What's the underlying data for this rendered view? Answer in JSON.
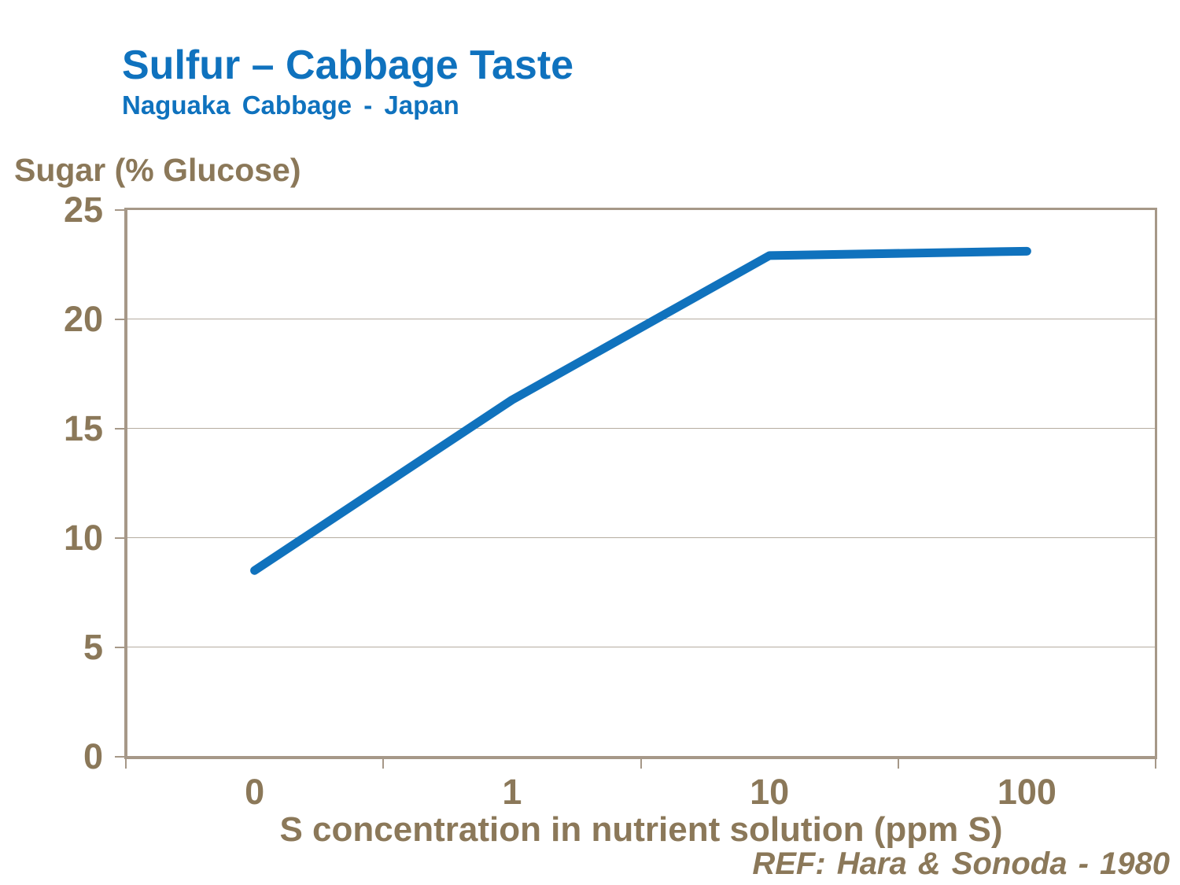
{
  "header": {
    "title": "Sulfur – Cabbage Taste",
    "subtitle": "Naguaka Cabbage - Japan"
  },
  "footer": {
    "reference": "REF: Hara & Sonoda - 1980"
  },
  "chart_data": {
    "type": "line",
    "title": "Sulfur – Cabbage Taste",
    "subtitle": "Naguaka Cabbage - Japan",
    "categories": [
      "0",
      "1",
      "10",
      "100"
    ],
    "values": [
      8.5,
      16.3,
      22.9,
      23.1
    ],
    "series_name": "Sugar (% Glucose)",
    "xlabel": "S concentration in nutrient solution (ppm S)",
    "ylabel": "Sugar (% Glucose)",
    "ylim": [
      0,
      25
    ],
    "y_ticks": [
      0,
      5,
      10,
      15,
      20,
      25
    ],
    "grid": "horizontal",
    "legend": "none",
    "annotation": "REF: Hara & Sonoda - 1980"
  },
  "colors": {
    "accent_blue": "#0F72BE",
    "line_blue": "#1072BD",
    "label_brown": "#8B7859",
    "frame_tan": "#A69888",
    "gridline_tan": "#B5ACA0",
    "background": "#FFFFFF"
  }
}
